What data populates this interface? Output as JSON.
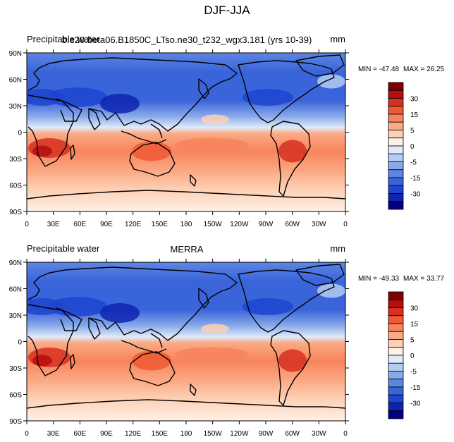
{
  "figure": {
    "title": "DJF-JJA",
    "lat_ticks": [
      "90N",
      "60N",
      "30N",
      "0",
      "30S",
      "60S",
      "90S"
    ],
    "lon_ticks": [
      "0",
      "30E",
      "60E",
      "90E",
      "120E",
      "150E",
      "180",
      "150W",
      "120W",
      "90W",
      "60W",
      "30W",
      "0"
    ],
    "colorbar": {
      "labels": [
        "30",
        "15",
        "5",
        "0",
        "-5",
        "-15",
        "-30"
      ],
      "colors": [
        "#7f0000",
        "#b40e0e",
        "#d7301f",
        "#ef5a35",
        "#f7845c",
        "#fbaa85",
        "#fdd0b5",
        "#fff0e6",
        "#dfeafa",
        "#b4ccf2",
        "#88aaea",
        "#5d86e2",
        "#3a64da",
        "#1f44cf",
        "#0d24b0",
        "#000080"
      ]
    },
    "panels": [
      {
        "id": "model",
        "left_title": "Precipitable water",
        "center_title": "b.e20.beta06.B1850C_LTso.ne30_t232_wgx3.181 (yrs 10-39)",
        "units": "mm",
        "min_label": "MIN = -47.48",
        "max_label": "MAX =  26.25"
      },
      {
        "id": "obs",
        "left_title": "Precipitable water",
        "center_title": "MERRA",
        "units": "mm",
        "min_label": "MIN = -49.33",
        "max_label": "MAX =  33.77"
      }
    ]
  }
}
